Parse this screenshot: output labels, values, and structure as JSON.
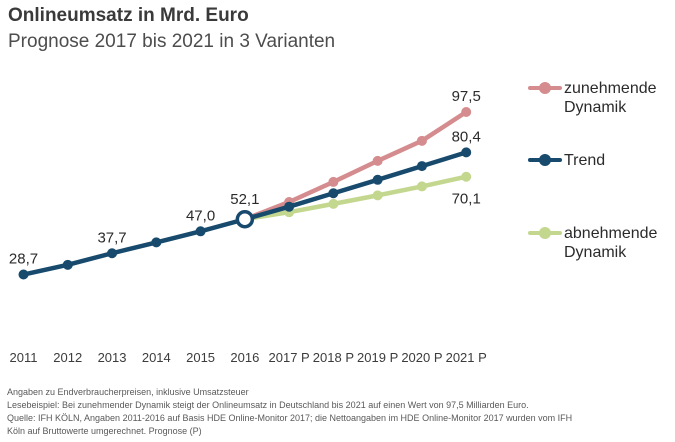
{
  "header": {
    "title": "Onlineumsatz in Mrd. Euro",
    "subtitle": "Prognose 2017 bis 2021 in 3 Varianten"
  },
  "legend": {
    "items": [
      {
        "line1": "zunehmende",
        "line2": "Dynamik",
        "color": "#d58c8e"
      },
      {
        "line1": "Trend",
        "line2": "",
        "color": "#174a6c"
      },
      {
        "line1": "abnehmende",
        "line2": "Dynamik",
        "color": "#c3d78f"
      }
    ]
  },
  "footer": {
    "lines": [
      "Angaben zu Endverbraucherpreisen, inklusive Umsatzsteuer",
      "Lesebeispiel: Bei zunehmender Dynamik steigt der Onlineumsatz in Deutschland bis 2021 auf einen Wert von 97,5 Milliarden Euro.",
      "Quelle: IFH KÖLN, Angaben 2011-2016 auf Basis HDE Online-Monitor 2017; die Nettoangaben im HDE Online-Monitor 2017 wurden vom IFH",
      "Köln auf Bruttowerte umgerechnet. Prognose (P)"
    ]
  },
  "chart_data": {
    "type": "line",
    "title": "Onlineumsatz in Mrd. Euro",
    "subtitle": "Prognose 2017 bis 2021 in 3 Varianten",
    "unit": "Mrd. Euro",
    "xlabel": "",
    "ylabel": "",
    "ylim": [
      25,
      105
    ],
    "grid": false,
    "legend_position": "right",
    "x": [
      "2011",
      "2012",
      "2013",
      "2014",
      "2015",
      "2016",
      "2017 P",
      "2018 P",
      "2019 P",
      "2020 P",
      "2021 P"
    ],
    "series": [
      {
        "name": "abnehmende Dynamik",
        "color": "#c3d78f",
        "start_index": 5,
        "values": [
          52.1,
          55.1,
          58.6,
          62.2,
          66.0,
          70.1
        ],
        "labels": [
          {
            "i": 5,
            "text": "70,1",
            "pos": "below"
          }
        ]
      },
      {
        "name": "zunehmende Dynamik",
        "color": "#d58c8e",
        "start_index": 5,
        "values": [
          52.1,
          59.4,
          67.9,
          76.8,
          85.3,
          97.5
        ],
        "labels": [
          {
            "i": 5,
            "text": "97,5",
            "pos": "above"
          }
        ]
      },
      {
        "name": "Trend (Prognose)",
        "color": "#174a6c",
        "start_index": 5,
        "values": [
          52.1,
          57.4,
          63.1,
          68.8,
          74.6,
          80.4
        ],
        "labels": [
          {
            "i": 5,
            "text": "80,4",
            "pos": "above"
          }
        ]
      },
      {
        "name": "Trend (Ist 2011-2016)",
        "color": "#174a6c",
        "start_index": 0,
        "values": [
          28.7,
          32.8,
          37.7,
          42.3,
          47.0,
          52.1
        ],
        "open_marker_i": 5,
        "labels": [
          {
            "i": 0,
            "text": "28,7",
            "pos": "above"
          },
          {
            "i": 2,
            "text": "37,7",
            "pos": "above"
          },
          {
            "i": 4,
            "text": "47,0",
            "pos": "above"
          },
          {
            "i": 5,
            "text": "52,1",
            "pos": "above"
          }
        ]
      }
    ]
  }
}
